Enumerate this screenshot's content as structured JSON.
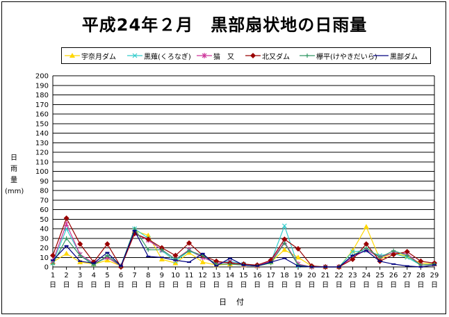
{
  "title": "平成24年２月　黒部扇状地の日雨量",
  "chart_data": {
    "type": "line",
    "title": "平成24年２月　黒部扇状地の日雨量",
    "xlabel": "日付",
    "ylabel": "日雨量(mm)",
    "ylim": [
      0,
      200
    ],
    "y_ticks": [
      0,
      10,
      20,
      30,
      40,
      50,
      60,
      70,
      80,
      90,
      100,
      110,
      120,
      130,
      140,
      150,
      160,
      170,
      180,
      190,
      200
    ],
    "grid": true,
    "legend_position": "top",
    "x": [
      "1",
      "2",
      "3",
      "4",
      "5",
      "6",
      "7",
      "8",
      "9",
      "10",
      "11",
      "12",
      "13",
      "14",
      "15",
      "16",
      "17",
      "18",
      "19",
      "20",
      "21",
      "22",
      "23",
      "24",
      "25",
      "26",
      "27",
      "28",
      "29"
    ],
    "x_tick_suffix": "日",
    "series": [
      {
        "name": "宇奈月ダム",
        "color": "#FFD700",
        "marker": "triangle",
        "values": [
          5,
          14,
          5,
          3,
          7,
          1,
          38,
          33,
          8,
          4,
          15,
          5,
          2,
          3,
          2,
          1,
          5,
          18,
          10,
          1,
          0,
          0,
          17,
          42,
          8,
          15,
          11,
          4,
          3
        ]
      },
      {
        "name": "黒薙(くろなぎ)",
        "color": "#33CCCC",
        "marker": "x",
        "values": [
          4,
          40,
          13,
          3,
          10,
          1,
          40,
          30,
          17,
          6,
          17,
          10,
          4,
          6,
          3,
          1,
          5,
          43,
          1,
          0,
          0,
          0,
          16,
          17,
          12,
          14,
          10,
          2,
          3
        ]
      },
      {
        "name": "猫　又",
        "color": "#CC3399",
        "marker": "star",
        "values": [
          6,
          45,
          13,
          4,
          10,
          1,
          35,
          28,
          18,
          8,
          18,
          10,
          4,
          5,
          2,
          1,
          6,
          26,
          3,
          0,
          0,
          0,
          10,
          18,
          10,
          15,
          14,
          2,
          3
        ]
      },
      {
        "name": "北又ダム",
        "color": "#990000",
        "marker": "diamond",
        "values": [
          12,
          51,
          24,
          5,
          24,
          0,
          35,
          29,
          20,
          12,
          25,
          12,
          6,
          4,
          3,
          2,
          7,
          29,
          19,
          1,
          0,
          0,
          8,
          24,
          6,
          13,
          16,
          6,
          4
        ]
      },
      {
        "name": "欅平(けやきだいら)",
        "color": "#339966",
        "marker": "plus",
        "values": [
          3,
          30,
          12,
          2,
          12,
          1,
          40,
          18,
          18,
          8,
          17,
          12,
          3,
          3,
          2,
          1,
          4,
          25,
          2,
          0,
          0,
          0,
          12,
          20,
          10,
          17,
          12,
          2,
          3
        ]
      },
      {
        "name": "黒部ダム",
        "color": "#000080",
        "marker": "dash",
        "values": [
          7,
          22,
          6,
          4,
          15,
          1,
          38,
          11,
          10,
          7,
          5,
          14,
          1,
          9,
          2,
          1,
          5,
          9,
          1,
          0,
          0,
          0,
          12,
          17,
          6,
          3,
          1,
          0,
          2
        ]
      }
    ]
  }
}
